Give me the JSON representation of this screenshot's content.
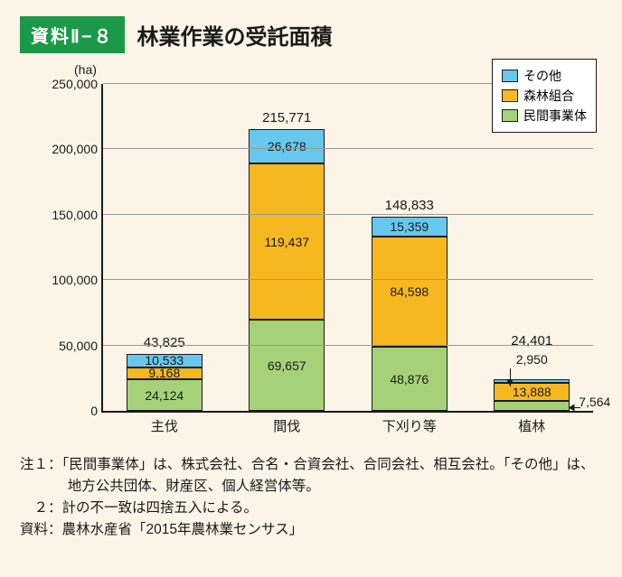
{
  "badge": "資料Ⅱ−８",
  "title": "林業作業の受託面積",
  "chart": {
    "type": "stacked-bar",
    "unit_label": "(ha)",
    "background_color": "#fbf4e7",
    "axis_color": "#1a1a1a",
    "grid_color": "#999999",
    "ylim_max": 250000,
    "ytick_step": 50000,
    "yticks": [
      "0",
      "50,000",
      "100,000",
      "150,000",
      "200,000",
      "250,000"
    ],
    "legend": {
      "other": {
        "label": "その他",
        "color": "#66c8ed"
      },
      "coop": {
        "label": "森林組合",
        "color": "#f6b821"
      },
      "private": {
        "label": "民間事業体",
        "color": "#a6d178"
      }
    },
    "series_order": [
      "private",
      "coop",
      "other"
    ],
    "categories": [
      {
        "name": "主伐",
        "total": 43825,
        "total_label": "43,825",
        "segments": {
          "private": {
            "v": 24124,
            "label": "24,124"
          },
          "coop": {
            "v": 9168,
            "label": "9,168"
          },
          "other": {
            "v": 10533,
            "label": "10,533"
          }
        }
      },
      {
        "name": "間伐",
        "total": 215771,
        "total_label": "215,771",
        "segments": {
          "private": {
            "v": 69657,
            "label": "69,657"
          },
          "coop": {
            "v": 119437,
            "label": "119,437"
          },
          "other": {
            "v": 26678,
            "label": "26,678"
          }
        }
      },
      {
        "name": "下刈り等",
        "total": 148833,
        "total_label": "148,833",
        "segments": {
          "private": {
            "v": 48876,
            "label": "48,876"
          },
          "coop": {
            "v": 84598,
            "label": "84,598"
          },
          "other": {
            "v": 15359,
            "label": "15,359"
          }
        }
      },
      {
        "name": "植林",
        "total": 24401,
        "total_label": "24,401",
        "segments": {
          "private": {
            "v": 7564,
            "label": "7,564"
          },
          "coop": {
            "v": 13888,
            "label": "13,888"
          },
          "other": {
            "v": 2950,
            "label": "2,950"
          }
        },
        "offset": {
          "private": "right",
          "other": "above"
        }
      }
    ]
  },
  "notes": {
    "n1": "注１：「民間事業体」は、株式会社、合名・合資会社、合同会社、相互会社。「その他」は、地方公共団体、財産区、個人経営体等。",
    "n2": "　２：計の不一致は四捨五入による。",
    "src": "資料：農林水産省「2015年農林業センサス」"
  }
}
